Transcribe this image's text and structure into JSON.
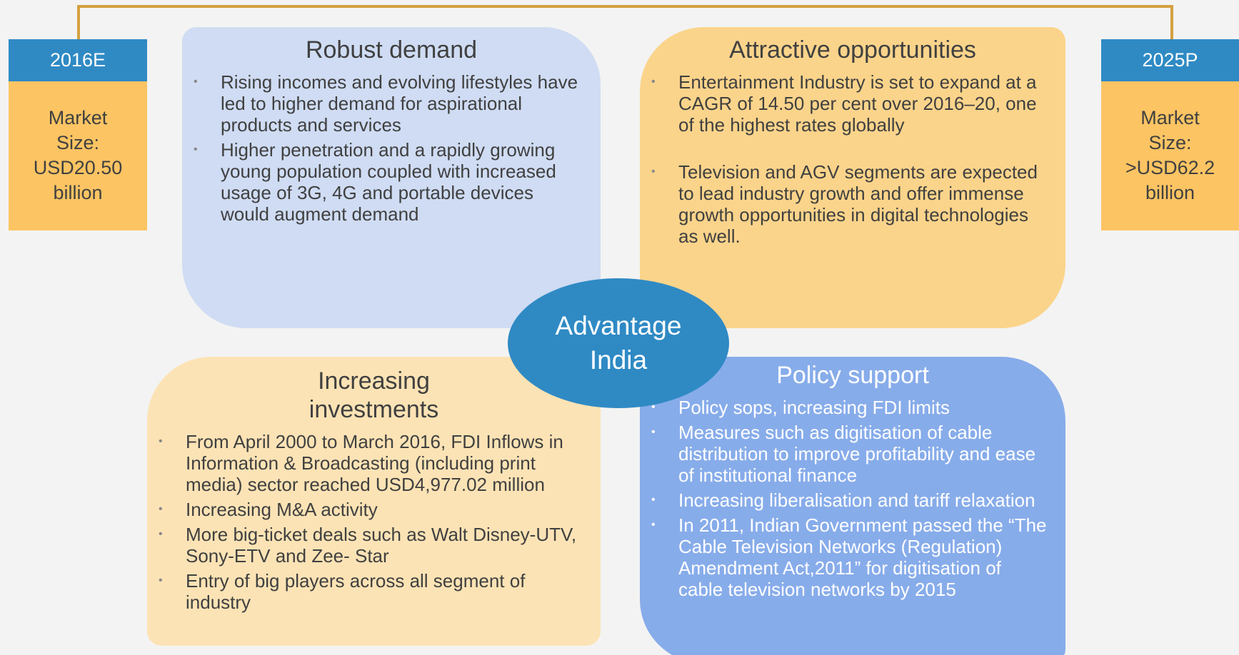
{
  "timeline": {
    "start": {
      "label": "2016E",
      "text": "Market Size: USD20.50 billion"
    },
    "end": {
      "label": "2025P",
      "text": "Market Size: >USD62.2 billion"
    }
  },
  "center": "Advantage India",
  "quadrants": [
    {
      "title": "Robust demand",
      "bullets": [
        "Rising incomes and evolving lifestyles have led to higher demand for aspirational products and services",
        "Higher penetration and a rapidly growing young population coupled with increased usage of 3G, 4G and portable devices would augment demand"
      ]
    },
    {
      "title": "Attractive opportunities",
      "bullets": [
        "Entertainment Industry is set to expand at a CAGR of 14.50 per cent over 2016–20, one of the highest rates globally",
        "Television and AGV segments are expected to lead industry growth and offer immense growth opportunities in digital technologies as well."
      ]
    },
    {
      "title": "Increasing investments",
      "bullets": [
        "From April 2000 to March 2016, FDI Inflows in Information & Broadcasting (including print media) sector reached USD4,977.02 million",
        "Increasing M&A activity",
        "More big-ticket deals such as Walt Disney-UTV, Sony-ETV and Zee- Star",
        "Entry of big players across all segment of industry"
      ]
    },
    {
      "title": "Policy support",
      "bullets": [
        "Policy sops, increasing FDI limits",
        "Measures such as digitisation of cable distribution to improve profitability and ease of institutional finance",
        "Increasing liberalisation and tariff relaxation",
        "In 2011, Indian Government passed the “The Cable Television Networks (Regulation) Amendment Act,2011” for digitisation of  cable television networks by 2015"
      ]
    }
  ]
}
